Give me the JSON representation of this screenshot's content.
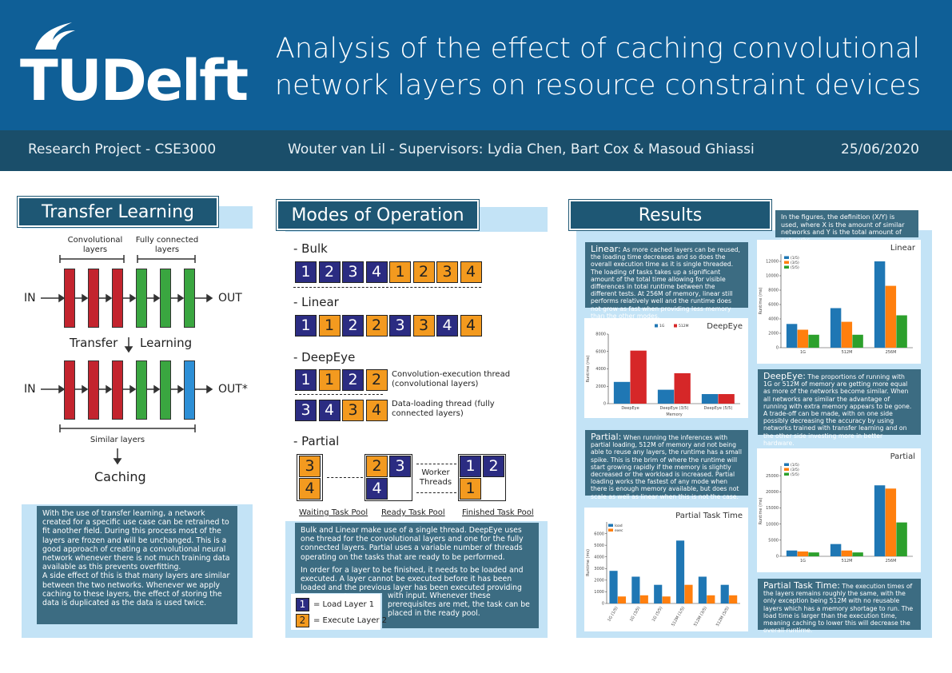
{
  "header": {
    "title_line1": "Analysis of the effect of caching convolutional",
    "title_line2": "network layers on resource constraint devices",
    "logo_text": "TUDelft",
    "course": "Research Project - CSE3000",
    "authors": "Wouter van Lil - Supervisors: Lydia Chen, Bart Cox & Masoud Ghiassi",
    "date": "25/06/2020"
  },
  "transfer": {
    "title": "Transfer Learning",
    "conv_label": "Convolutional layers",
    "fc_label": "Fully connected layers",
    "in1": "IN",
    "out1": "OUT",
    "transfer_word": "Transfer",
    "learning_word": "Learning",
    "in2": "IN",
    "out2": "OUT*",
    "similar": "Similar layers",
    "caching": "Caching",
    "text_p1": "With the use of transfer learning, a network created for a specific use case can be retrained to fit another field. During this process most of the layers are frozen and will be unchanged. This is a good approach of creating a convolutional neural network whenever there is not much training data available as this prevents overfitting.",
    "text_p2": "A side effect of this is that many layers are similar between the two networks. Whenever we apply caching to these layers, the effect of storing the data is duplicated as the data is used twice."
  },
  "modes": {
    "title": "Modes of Operation",
    "bulk": "- Bulk",
    "bulk_cells": [
      "1",
      "2",
      "3",
      "4",
      "1",
      "2",
      "3",
      "4"
    ],
    "linear": "- Linear",
    "linear_cells": [
      "1",
      "1",
      "2",
      "2",
      "3",
      "3",
      "4",
      "4"
    ],
    "deepeye": "- DeepEye",
    "deepeye_row1": [
      "1",
      "1",
      "2",
      "2"
    ],
    "deepeye_row2": [
      "3",
      "4",
      "3",
      "4"
    ],
    "conv_thread": "Convolution-execution thread (convolutional layers)",
    "data_thread": "Data-loading thread (fully connected layers)",
    "partial": "- Partial",
    "waiting_cells": [
      "3",
      "4"
    ],
    "ready_cells": [
      "2",
      "3",
      "4"
    ],
    "finished_cells": [
      "1",
      "2",
      "1"
    ],
    "worker": "Worker Threads",
    "waiting_pool": "Waiting Task Pool",
    "ready_pool": "Ready Task Pool",
    "finished_pool": "Finished Task Pool",
    "text_p1": "Bulk and Linear make use of a single thread. DeepEye uses one thread for the convolutional layers and one for the fully connected layers. Partial uses a variable number of threads operating on the tasks that are ready to be performed.",
    "text_p2": "In order for a layer to be finished, it needs to be loaded and executed. A layer cannot be executed before it has been loaded and the previous layer has been executed providing the current layer",
    "text_p3": "with input. Whenever these prerequisites are met, the task can be placed in the ready pool.",
    "legend_load_num": "1",
    "legend_load": "= Load Layer 1",
    "legend_exec_num": "2",
    "legend_exec": "= Execute Layer 2"
  },
  "results": {
    "title": "Results",
    "note": "In the figures, the definition (X/Y) is used, where X is the amount of similar networks and Y is the total amount of networks.",
    "linear_head": "Linear:",
    "linear_text": "As more cached layers can be reused, the loading time decreases and so does the overall execution time as it is single threaded. The loading of tasks takes up a significant amount of the total time allowing for visible differences in total runtime between the different tests. At 256M of memory, linear still performs relatively well and the runtime does not grow as fast when providing less memory than the other modes.",
    "deepeye_head": "DeepEye:",
    "deepeye_text": "The proportions of running with 1G or 512M of memory are getting more equal as more of the networks become similar. When all networks are similar the advantage of running with extra memory appears to be gone. A trade-off can be made, with on one side possibly decreasing the accuracy by using networks trained with transfer learning and on the other side investing more in better hardware.",
    "partial_head": "Partial:",
    "partial_text": "When running the inferences with partial loading, 512M of memory and not being able to reuse any layers, the runtime has a small spike. This is the brim of where the runtime will start growing rapidly if the memory is slightly decreased or the workload is increased. Partial loading works the fastest of any mode when there is enough memory available, but does not scale as well as linear when this is not the case.",
    "ptt_head": "Partial Task Time:",
    "ptt_text": "The execution times of the layers remains roughly the same, with the only exception being 512M with no reusable layers which has a memory shortage to run. The load time is larger than the execution time, meaning caching to lower this will decrease the overall runtime."
  },
  "colors": {
    "blue": "#1f77b4",
    "orange": "#ff7f0e",
    "green": "#2ca02c",
    "red": "#d62728"
  },
  "chart_data": [
    {
      "type": "bar",
      "title": "Linear",
      "categories": [
        "1G",
        "512M",
        "256M"
      ],
      "series": [
        {
          "name": "(1/5)",
          "values": [
            3300,
            5500,
            12000
          ]
        },
        {
          "name": "(3/5)",
          "values": [
            2500,
            3600,
            8600
          ]
        },
        {
          "name": "(5/5)",
          "values": [
            1800,
            1800,
            4500
          ]
        }
      ],
      "ylabel": "Runtime (ms)",
      "ylim": [
        0,
        13000
      ],
      "yticks": [
        0,
        2000,
        4000,
        6000,
        8000,
        10000,
        12000
      ]
    },
    {
      "type": "bar",
      "title": "DeepEye",
      "categories": [
        "DeepEye",
        "DeepEye (3/5)",
        "DeepEye (5/5)"
      ],
      "series": [
        {
          "name": "1G",
          "values": [
            2500,
            1600,
            1100
          ]
        },
        {
          "name": "512M",
          "values": [
            6100,
            3500,
            1100
          ]
        }
      ],
      "xlabel": "Memory",
      "ylabel": "Runtime (ms)",
      "ylim": [
        0,
        8000
      ],
      "yticks": [
        0,
        2000,
        4000,
        6000,
        8000
      ]
    },
    {
      "type": "bar",
      "title": "Partial Task Time",
      "categories": [
        "1G (1/5)",
        "1G (3/5)",
        "1G (5/5)",
        "512M (1/5)",
        "512M (3/5)",
        "512M (5/5)"
      ],
      "series": [
        {
          "name": "load",
          "values": [
            2800,
            2300,
            1600,
            5400,
            2300,
            1600
          ]
        },
        {
          "name": "exec",
          "values": [
            600,
            700,
            600,
            1600,
            700,
            700
          ]
        }
      ],
      "ylabel": "Runtime (ms)",
      "ylim": [
        0,
        7000
      ],
      "yticks": [
        0,
        1000,
        2000,
        3000,
        4000,
        5000,
        6000
      ]
    },
    {
      "type": "bar",
      "title": "Partial",
      "categories": [
        "1G",
        "512M",
        "256M"
      ],
      "series": [
        {
          "name": "(1/5)",
          "values": [
            1800,
            3800,
            22000
          ]
        },
        {
          "name": "(3/5)",
          "values": [
            1500,
            1800,
            21000
          ]
        },
        {
          "name": "(5/5)",
          "values": [
            1200,
            1200,
            10500
          ]
        }
      ],
      "ylabel": "Runtime (ms)",
      "ylim": [
        0,
        28000
      ],
      "yticks": [
        0,
        5000,
        10000,
        15000,
        20000,
        25000
      ]
    }
  ]
}
